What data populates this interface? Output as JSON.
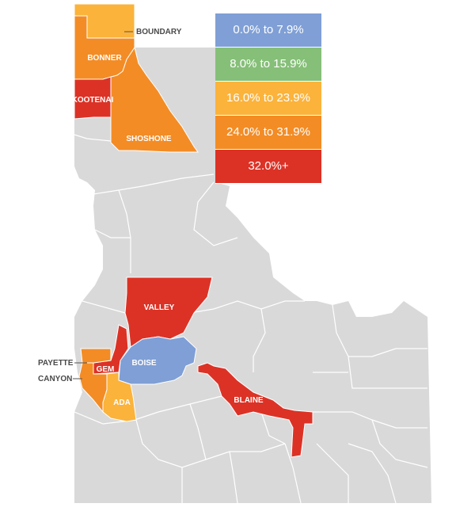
{
  "colors": {
    "base": "#d9d9d9",
    "border": "#ffffff",
    "range1": "#7f9fd6",
    "range2": "#86bf78",
    "range3": "#fbb33b",
    "range4": "#f38c25",
    "range5": "#dc3226"
  },
  "legend": [
    {
      "label": "0.0% to  7.9%",
      "color": "#7f9fd6"
    },
    {
      "label": "8.0% to 15.9%",
      "color": "#86bf78"
    },
    {
      "label": "16.0% to 23.9%",
      "color": "#fbb33b"
    },
    {
      "label": "24.0% to 31.9%",
      "color": "#f38c25"
    },
    {
      "label": "32.0%+",
      "color": "#dc3226"
    }
  ],
  "counties": {
    "boundary": "BOUNDARY",
    "bonner": "BONNER",
    "kootenai": "KOOTENAI",
    "shoshone": "SHOSHONE",
    "valley": "VALLEY",
    "boise": "BOISE",
    "gem": "GEM",
    "payette": "PAYETTE",
    "canyon": "CANYON",
    "ada": "ADA",
    "blaine": "BLAINE"
  }
}
